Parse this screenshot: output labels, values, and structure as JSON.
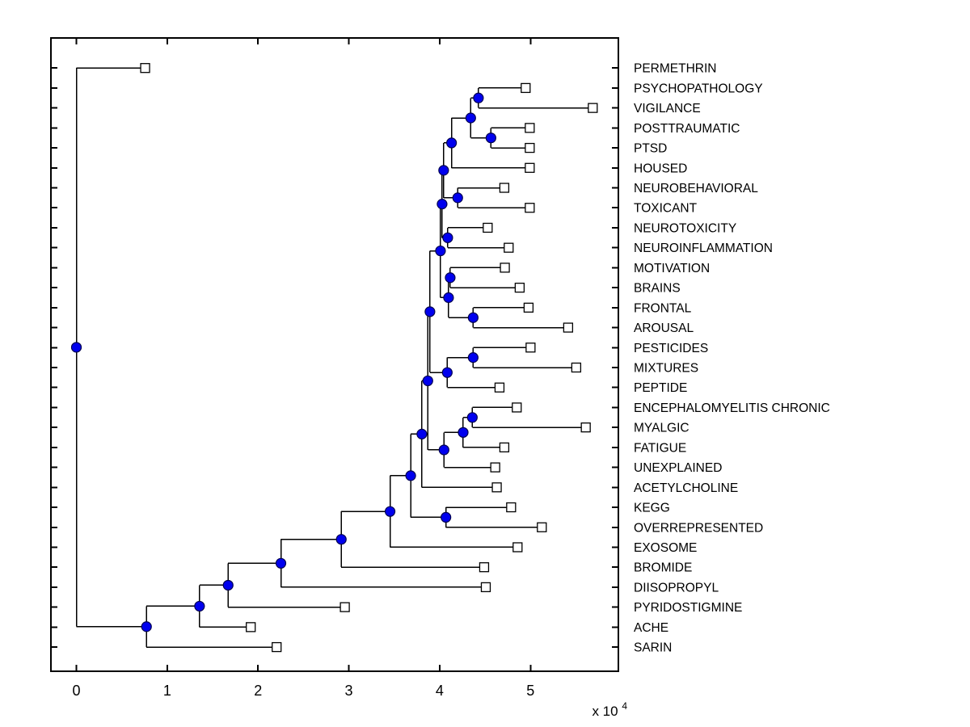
{
  "figure": {
    "background": "#ffffff",
    "description": "Horizontal dendrogram of hierarchical clustering of terms, leaves on right"
  },
  "axes": {
    "box_color": "#000000",
    "x_ticks": [
      {
        "label": "0",
        "value": 0
      },
      {
        "label": "1",
        "value": 10000
      },
      {
        "label": "2",
        "value": 20000
      },
      {
        "label": "3",
        "value": 30000
      },
      {
        "label": "4",
        "value": 40000
      },
      {
        "label": "5",
        "value": 50000
      }
    ],
    "exponent": {
      "prefix": "x 10",
      "sup": "4"
    },
    "xlim": [
      -2850,
      59700
    ],
    "grid": "off",
    "tick_direction": "in"
  },
  "colors": {
    "branch": "#000000",
    "node_fill": "#0000ee",
    "node_edge": "#000050",
    "leaf_fill": "#ffffff",
    "leaf_edge": "#000000",
    "text": "#000000"
  },
  "chart_data": {
    "type": "dendrogram",
    "orientation": "horizontal-leaves-right",
    "title": "",
    "xlabel": "",
    "ylabel": "",
    "x_unit_multiplier": 10000,
    "leaves": [
      {
        "label": "PERMETHRIN",
        "value": 7570
      },
      {
        "label": "PSYCHOPATHOLOGY",
        "value": 49470
      },
      {
        "label": "VIGILANCE",
        "value": 56860
      },
      {
        "label": "POSTTRAUMATIC",
        "value": 49920
      },
      {
        "label": "PTSD",
        "value": 49920
      },
      {
        "label": "HOUSED",
        "value": 49920
      },
      {
        "label": "NEUROBEHAVIORAL",
        "value": 47120
      },
      {
        "label": "TOXICANT",
        "value": 49920
      },
      {
        "label": "NEUROTOXICITY",
        "value": 45290
      },
      {
        "label": "NEUROINFLAMMATION",
        "value": 47600
      },
      {
        "label": "MOTIVATION",
        "value": 47180
      },
      {
        "label": "BRAINS",
        "value": 48810
      },
      {
        "label": "FRONTAL",
        "value": 49790
      },
      {
        "label": "AROUSAL",
        "value": 54150
      },
      {
        "label": "PESTICIDES",
        "value": 50010
      },
      {
        "label": "MIXTURES",
        "value": 55040
      },
      {
        "label": "PEPTIDE",
        "value": 46590
      },
      {
        "label": "ENCEPHALOMYELITIS CHRONIC",
        "value": 48490
      },
      {
        "label": "MYALGIC",
        "value": 56090
      },
      {
        "label": "FATIGUE",
        "value": 47120
      },
      {
        "label": "UNEXPLAINED",
        "value": 46120
      },
      {
        "label": "ACETYLCHOLINE",
        "value": 46290
      },
      {
        "label": "KEGG",
        "value": 47870
      },
      {
        "label": "OVERREPRESENTED",
        "value": 51250
      },
      {
        "label": "EXOSOME",
        "value": 48580
      },
      {
        "label": "BROMIDE",
        "value": 44900
      },
      {
        "label": "DIISOPROPYL",
        "value": 45080
      },
      {
        "label": "PYRIDOSTIGMINE",
        "value": 29560
      },
      {
        "label": "ACHE",
        "value": 19200
      },
      {
        "label": "SARIN",
        "value": 22050
      }
    ],
    "tree": {
      "v": 0,
      "c": [
        {
          "leaf": "PERMETHRIN"
        },
        {
          "v": 7720,
          "c": [
            {
              "v": 13560,
              "c": [
                {
                  "v": 16710,
                  "c": [
                    {
                      "v": 22520,
                      "c": [
                        {
                          "v": 29170,
                          "c": [
                            {
                              "v": 34540,
                              "c": [
                                {
                                  "v": 36810,
                                  "c": [
                                    {
                                      "v": 38040,
                                      "c": [
                                        {
                                          "v": 38700,
                                          "c": [
                                            {
                                              "v": 38930,
                                              "c": [
                                                {
                                                  "v": 40090,
                                                  "c": [
                                                    {
                                                      "v": 40270,
                                                      "c": [
                                                        {
                                                          "v": 40440,
                                                          "c": [
                                                            {
                                                              "v": 41310,
                                                              "c": [
                                                                {
                                                                  "v": 43420,
                                                                  "c": [
                                                                    {
                                                                      "v": 44270,
                                                                      "c": [
                                                                        {
                                                                          "leaf": "PSYCHOPATHOLOGY"
                                                                        },
                                                                        {
                                                                          "leaf": "VIGILANCE"
                                                                        }
                                                                      ]
                                                                    },
                                                                    {
                                                                      "v": 45650,
                                                                      "c": [
                                                                        {
                                                                          "leaf": "POSTTRAUMATIC"
                                                                        },
                                                                        {
                                                                          "leaf": "PTSD"
                                                                        }
                                                                      ]
                                                                    }
                                                                  ]
                                                                },
                                                                {
                                                                  "leaf": "HOUSED"
                                                                }
                                                              ]
                                                            },
                                                            {
                                                              "v": 41990,
                                                              "c": [
                                                                {
                                                                  "leaf": "NEUROBEHAVIORAL"
                                                                },
                                                                {
                                                                  "leaf": "TOXICANT"
                                                                }
                                                              ]
                                                            }
                                                          ]
                                                        },
                                                        {
                                                          "v": 40890,
                                                          "c": [
                                                            {
                                                              "leaf": "NEUROTOXICITY"
                                                            },
                                                            {
                                                              "leaf": "NEUROINFLAMMATION"
                                                            }
                                                          ]
                                                        }
                                                      ]
                                                    },
                                                    {
                                                      "v": 40980,
                                                      "c": [
                                                        {
                                                          "v": 41160,
                                                          "c": [
                                                            {
                                                              "leaf": "MOTIVATION"
                                                            },
                                                            {
                                                              "leaf": "BRAINS"
                                                            }
                                                          ]
                                                        },
                                                        {
                                                          "v": 43690,
                                                          "c": [
                                                            {
                                                              "leaf": "FRONTAL"
                                                            },
                                                            {
                                                              "leaf": "AROUSAL"
                                                            }
                                                          ]
                                                        }
                                                      ]
                                                    }
                                                  ]
                                                },
                                                {
                                                  "v": 40840,
                                                  "c": [
                                                    {
                                                      "v": 43690,
                                                      "c": [
                                                        {
                                                          "leaf": "PESTICIDES"
                                                        },
                                                        {
                                                          "leaf": "MIXTURES"
                                                        }
                                                      ]
                                                    },
                                                    {
                                                      "leaf": "PEPTIDE"
                                                    }
                                                  ]
                                                }
                                              ]
                                            },
                                            {
                                              "v": 40480,
                                              "c": [
                                                {
                                                  "v": 42590,
                                                  "c": [
                                                    {
                                                      "v": 43600,
                                                      "c": [
                                                        {
                                                          "leaf": "ENCEPHALOMYELITIS CHRONIC"
                                                        },
                                                        {
                                                          "leaf": "MYALGIC"
                                                        }
                                                      ]
                                                    },
                                                    {
                                                      "leaf": "FATIGUE"
                                                    }
                                                  ]
                                                },
                                                {
                                                  "leaf": "UNEXPLAINED"
                                                }
                                              ]
                                            }
                                          ]
                                        },
                                        {
                                          "leaf": "ACETYLCHOLINE"
                                        }
                                      ]
                                    },
                                    {
                                      "v": 40690,
                                      "c": [
                                        {
                                          "leaf": "KEGG"
                                        },
                                        {
                                          "leaf": "OVERREPRESENTED"
                                        }
                                      ]
                                    }
                                  ]
                                },
                                {
                                  "leaf": "EXOSOME"
                                }
                              ]
                            },
                            {
                              "leaf": "BROMIDE"
                            }
                          ]
                        },
                        {
                          "leaf": "DIISOPROPYL"
                        }
                      ]
                    },
                    {
                      "leaf": "PYRIDOSTIGMINE"
                    }
                  ]
                },
                {
                  "leaf": "ACHE"
                }
              ]
            },
            {
              "leaf": "SARIN"
            }
          ]
        }
      ]
    }
  }
}
